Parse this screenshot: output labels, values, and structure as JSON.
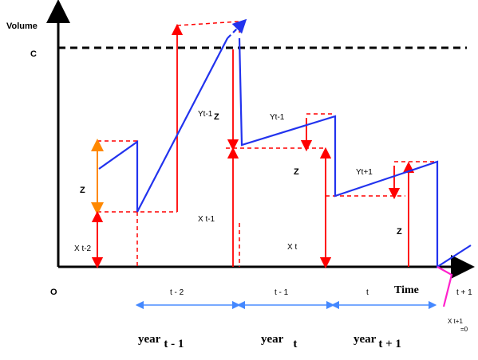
{
  "axes": {
    "y_label": "Volume",
    "origin_label": "O",
    "x_label": "Time",
    "capacity_label": "C"
  },
  "labels": {
    "z": "Z",
    "x_t2": "X t-2",
    "x_t1": "X t-1",
    "x_t": "X t",
    "y_t1": "Yt-1",
    "y_t1_b": "Yt-1",
    "y_t_plus": "Yt+1",
    "x_t_plus_1": "X t+1",
    "x_t_plus_1_eq": "=0"
  },
  "periods": {
    "t_minus_2": "t - 2",
    "t_minus_1": "t - 1",
    "t": "t",
    "t_plus_1": "t + 1"
  },
  "years": [
    {
      "word": "year",
      "sub": "t - 1"
    },
    {
      "word": "year",
      "sub": "t"
    },
    {
      "word": "year",
      "sub": "t + 1"
    }
  ],
  "colors": {
    "volume_line": "#2233ee",
    "flows": "#ff0000",
    "z_arrow": "#ff8800",
    "period_arrow": "#4488ff",
    "capacity_line": "#000000",
    "end_tick": "#ff22cc"
  }
}
